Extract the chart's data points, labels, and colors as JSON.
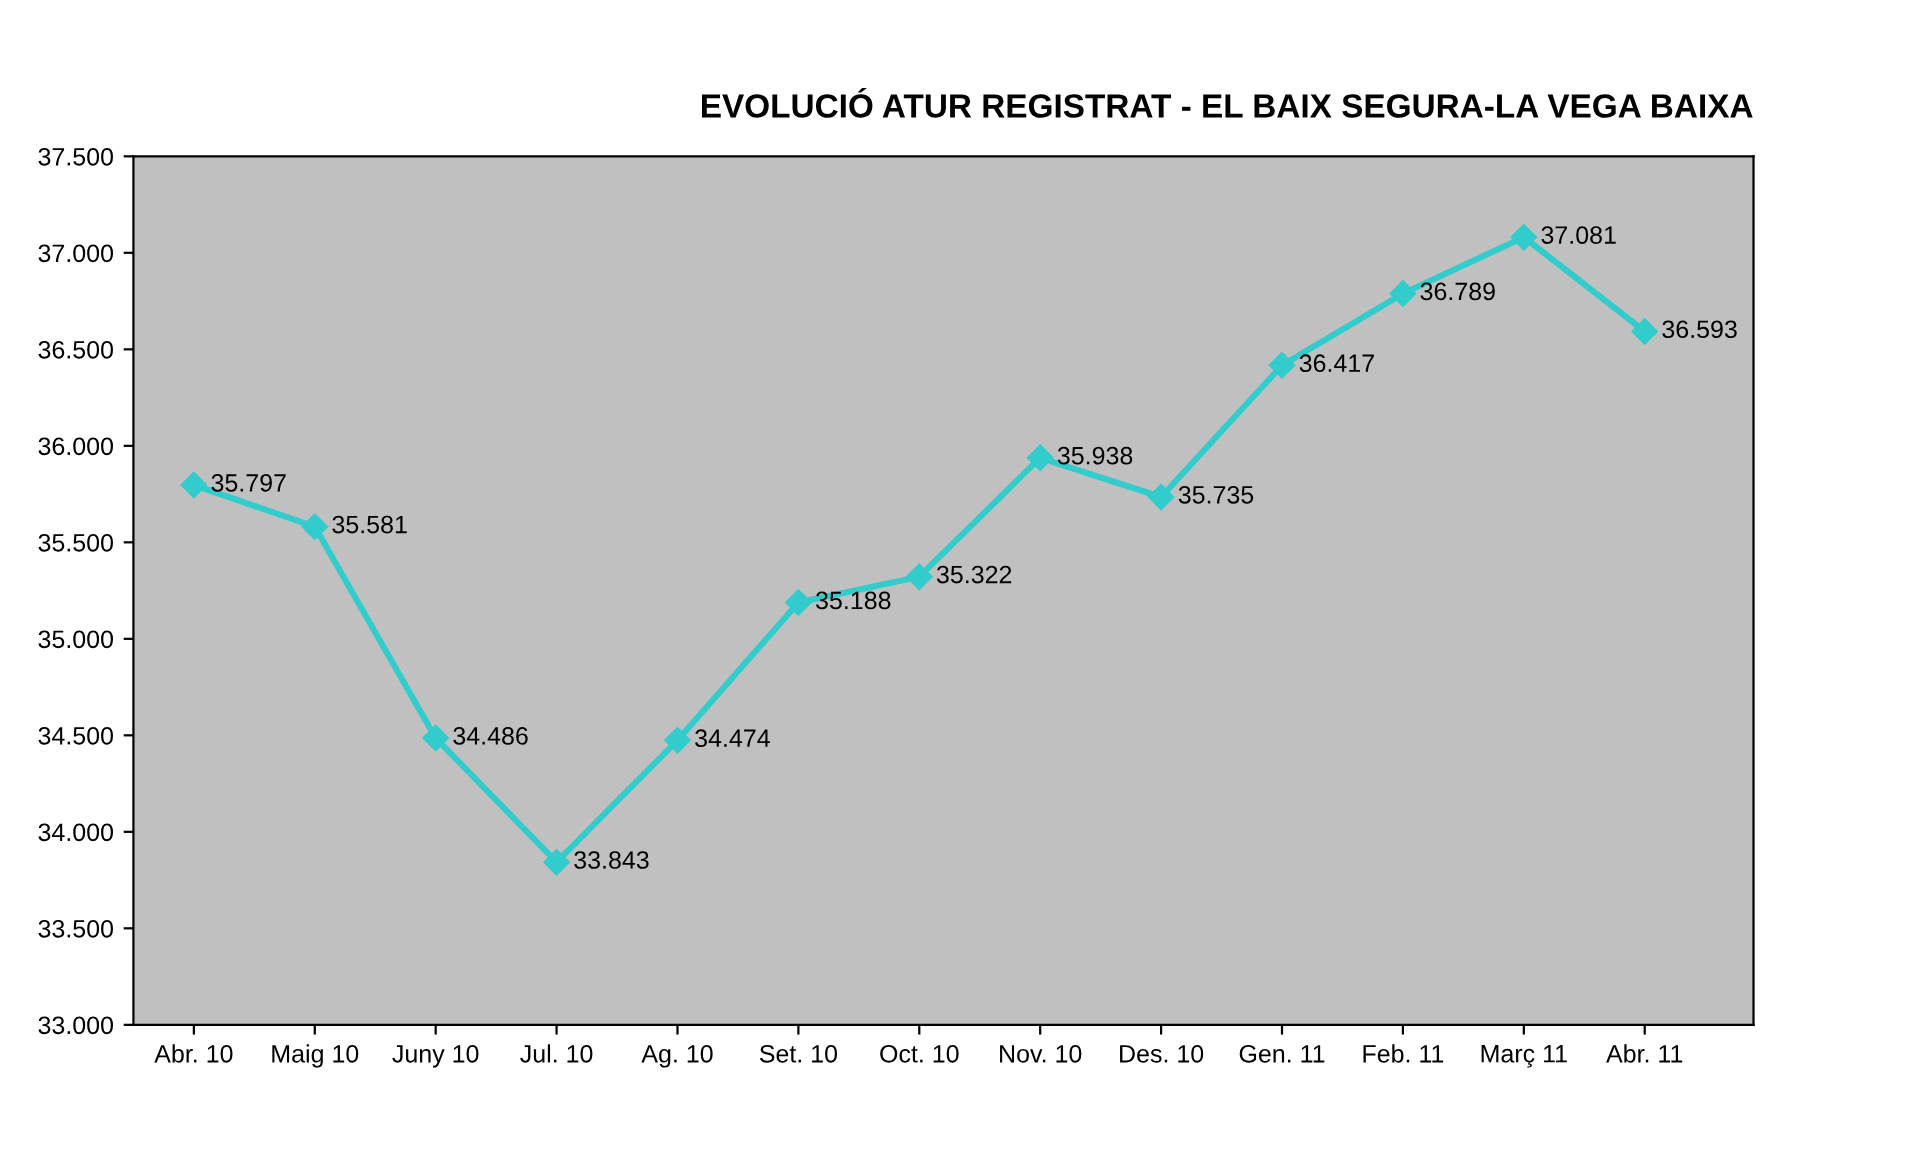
{
  "chart_data": {
    "type": "line",
    "title": "EVOLUCIÓ ATUR REGISTRAT - EL BAIX SEGURA-LA VEGA BAIXA",
    "categories": [
      "Abr. 10",
      "Maig 10",
      "Juny 10",
      "Jul. 10",
      "Ag. 10",
      "Set. 10",
      "Oct. 10",
      "Nov. 10",
      "Des. 10",
      "Gen. 11",
      "Feb. 11",
      "Març 11",
      "Abr. 11"
    ],
    "series": [
      {
        "color": "#33cccc",
        "values": [
          35797,
          35581,
          34486,
          33843,
          34474,
          35188,
          35322,
          35938,
          35735,
          36417,
          36789,
          37081,
          36593
        ],
        "value_labels": [
          "35.797",
          "35.581",
          "34.486",
          "33.843",
          "34.474",
          "35.188",
          "35.322",
          "35.938",
          "35.735",
          "36.417",
          "36.789",
          "37.081",
          "36.593"
        ]
      }
    ],
    "ylim": [
      33000,
      37500
    ],
    "yticks": [
      {
        "value": 33000,
        "label": "33.000"
      },
      {
        "value": 33500,
        "label": "33.500"
      },
      {
        "value": 34000,
        "label": "34.000"
      },
      {
        "value": 34500,
        "label": "34.500"
      },
      {
        "value": 35000,
        "label": "35.000"
      },
      {
        "value": 35500,
        "label": "35.500"
      },
      {
        "value": 36000,
        "label": "36.000"
      },
      {
        "value": 36500,
        "label": "36.500"
      },
      {
        "value": 37000,
        "label": "37.000"
      },
      {
        "value": 37500,
        "label": "37.500"
      }
    ],
    "marker": "diamond",
    "line_style": "solid"
  }
}
